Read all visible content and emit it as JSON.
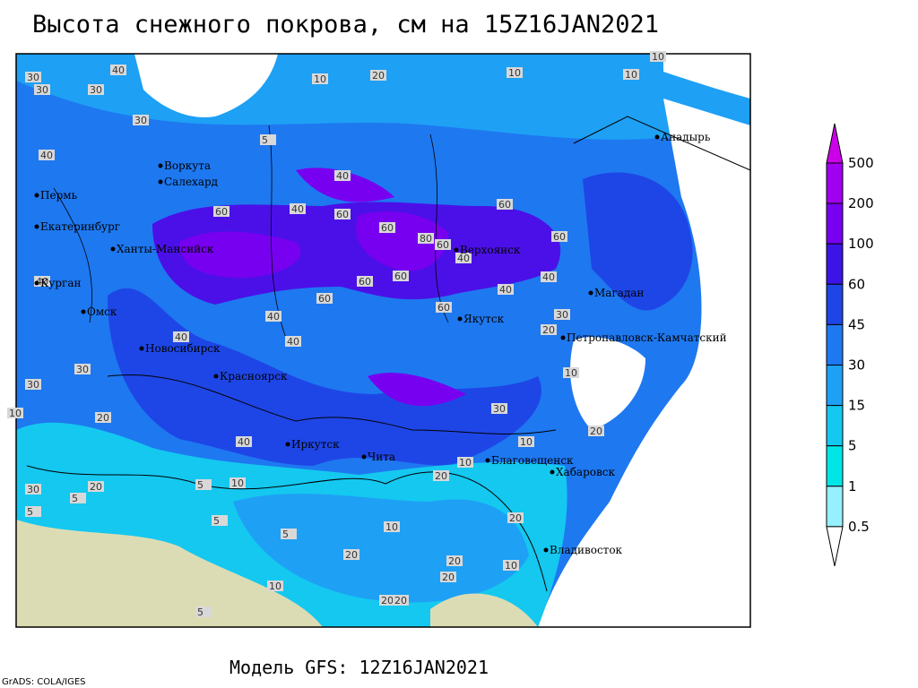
{
  "title": "Высота снежного покрова, см на 15Z16JAN2021",
  "model": "Модель GFS: 12Z16JAN2021",
  "credit": "GrADS: COLA/IGES",
  "legend": {
    "levels": [
      0.5,
      1,
      5,
      15,
      30,
      45,
      60,
      100,
      200,
      500
    ],
    "colors": [
      "#ffffff",
      "#96f0ff",
      "#00e6e6",
      "#14c8f0",
      "#1ea0f5",
      "#1e78f0",
      "#1e46e6",
      "#3c14e6",
      "#7800f0",
      "#a000f0",
      "#cc00e8"
    ]
  },
  "cities": [
    "Воркута",
    "Салехард",
    "Пермь",
    "Екатеринбург",
    "Ханты-Мансийск",
    "Курган",
    "Омск",
    "Новосибирск",
    "Красноярск",
    "Якутск",
    "Верхоянск",
    "Магадан",
    "Анадырь",
    "Петропавловск-Камчатский",
    "Иркутск",
    "Чита",
    "Благовещенск",
    "Хабаровск",
    "Владивосток"
  ],
  "contour_labels": [
    30,
    40,
    30,
    30,
    10,
    20,
    10,
    10,
    10,
    30,
    40,
    5,
    40,
    40,
    60,
    60,
    60,
    80,
    60,
    60,
    60,
    40,
    40,
    60,
    60,
    60,
    40,
    40,
    60,
    40,
    40,
    30,
    40,
    30,
    30,
    20,
    10,
    20,
    30,
    20,
    10,
    5,
    20,
    10,
    10,
    20,
    5,
    5,
    10,
    20,
    20,
    10,
    5,
    20,
    20,
    10,
    20,
    5,
    20,
    10,
    30,
    5,
    40
  ]
}
